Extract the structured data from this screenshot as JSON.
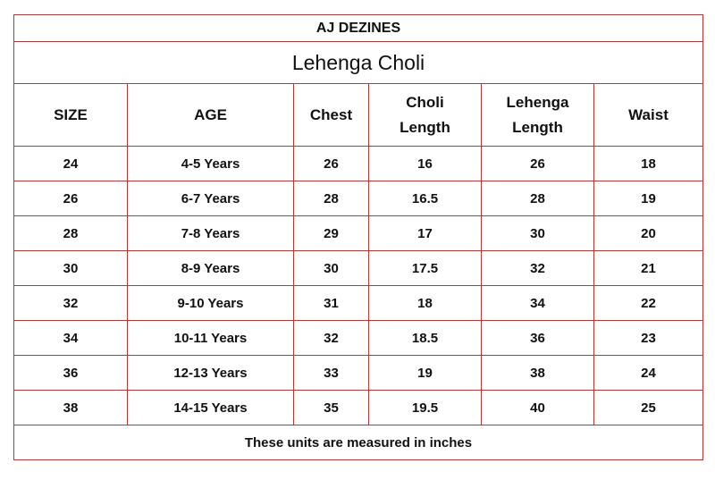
{
  "brand": "AJ DEZINES",
  "title": "Lehenga Choli",
  "headers": [
    {
      "line1": "SIZE",
      "line2": ""
    },
    {
      "line1": "AGE",
      "line2": ""
    },
    {
      "line1": "Chest",
      "line2": ""
    },
    {
      "line1": "Choli",
      "line2": "Length"
    },
    {
      "line1": "Lehenga",
      "line2": "Length"
    },
    {
      "line1": "Waist",
      "line2": ""
    }
  ],
  "rows": [
    [
      "24",
      "4-5 Years",
      "26",
      "16",
      "26",
      "18"
    ],
    [
      "26",
      "6-7 Years",
      "28",
      "16.5",
      "28",
      "19"
    ],
    [
      "28",
      "7-8 Years",
      "29",
      "17",
      "30",
      "20"
    ],
    [
      "30",
      "8-9 Years",
      "30",
      "17.5",
      "32",
      "21"
    ],
    [
      "32",
      "9-10 Years",
      "31",
      "18",
      "34",
      "22"
    ],
    [
      "34",
      "10-11 Years",
      "32",
      "18.5",
      "36",
      "23"
    ],
    [
      "36",
      "12-13 Years",
      "33",
      "19",
      "38",
      "24"
    ],
    [
      "38",
      "14-15 Years",
      "35",
      "19.5",
      "40",
      "25"
    ]
  ],
  "footer": "These units are measured in inches",
  "colors": {
    "border": "#b03a3a",
    "text": "#111111",
    "background": "#ffffff"
  }
}
